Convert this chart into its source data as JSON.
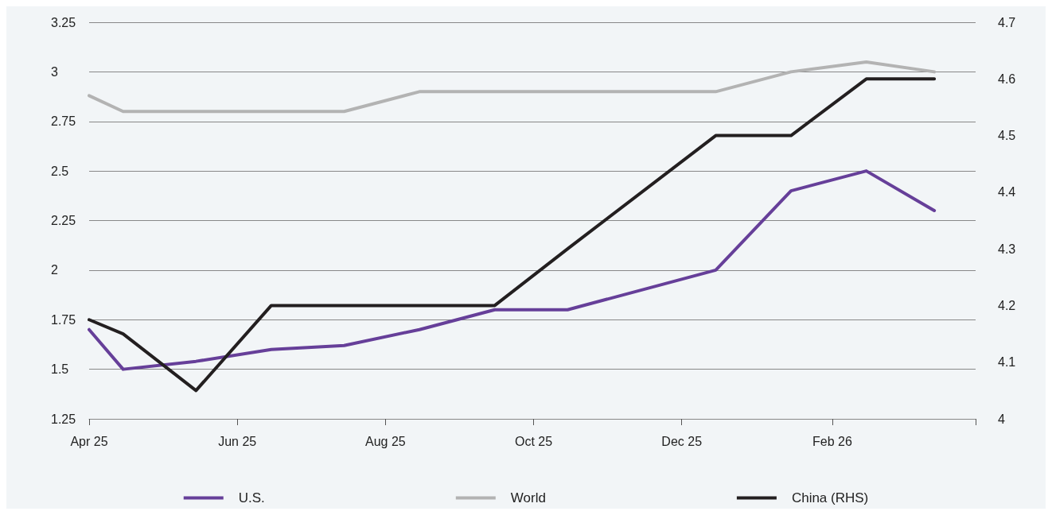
{
  "chart_data": {
    "type": "line",
    "x": [
      "2025-04-01",
      "2025-04-15",
      "2025-05-15",
      "2025-06-15",
      "2025-07-15",
      "2025-08-15",
      "2025-09-15",
      "2025-10-15",
      "2025-12-15",
      "2026-01-15",
      "2026-02-15",
      "2026-03-15"
    ],
    "series": [
      {
        "name": "U.S.",
        "color": "#663f99",
        "values": [
          1.7,
          1.5,
          1.54,
          1.6,
          1.62,
          1.7,
          1.8,
          1.8,
          2.0,
          2.4,
          2.5,
          2.3
        ]
      },
      {
        "name": "World",
        "color": "#b3b3b3",
        "values": [
          2.88,
          2.8,
          2.8,
          2.8,
          2.8,
          2.9,
          2.9,
          2.9,
          2.9,
          3.0,
          3.05,
          3.0
        ]
      },
      {
        "name": "China (RHS)",
        "color": "#231f20",
        "axis": "y2",
        "values": [
          4.175,
          4.15,
          4.05,
          4.2,
          4.2,
          4.2,
          4.2,
          4.3,
          4.5,
          4.5,
          4.6,
          4.6
        ]
      }
    ],
    "xlim": [
      "2025-04-01",
      "2026-04-01"
    ],
    "xticks": [
      {
        "value": "2025-04-01",
        "label": "Apr 25"
      },
      {
        "value": "2025-06-01",
        "label": "Jun 25"
      },
      {
        "value": "2025-08-01",
        "label": "Aug 25"
      },
      {
        "value": "2025-10-01",
        "label": "Oct 25"
      },
      {
        "value": "2025-12-01",
        "label": "Dec 25"
      },
      {
        "value": "2026-02-01",
        "label": "Feb 26"
      },
      {
        "value": "2026-04-01",
        "label": null
      }
    ],
    "ylim": [
      1.25,
      3.25
    ],
    "yticks": [
      1.25,
      1.5,
      1.75,
      2,
      2.25,
      2.5,
      2.75,
      3,
      3.25
    ],
    "y2lim": [
      4,
      4.7
    ],
    "y2ticks": [
      4,
      4.1,
      4.2,
      4.3,
      4.4,
      4.5,
      4.6,
      4.7
    ],
    "grid": "y",
    "legend": "bottom",
    "marker": "none",
    "line_style": "solid"
  }
}
